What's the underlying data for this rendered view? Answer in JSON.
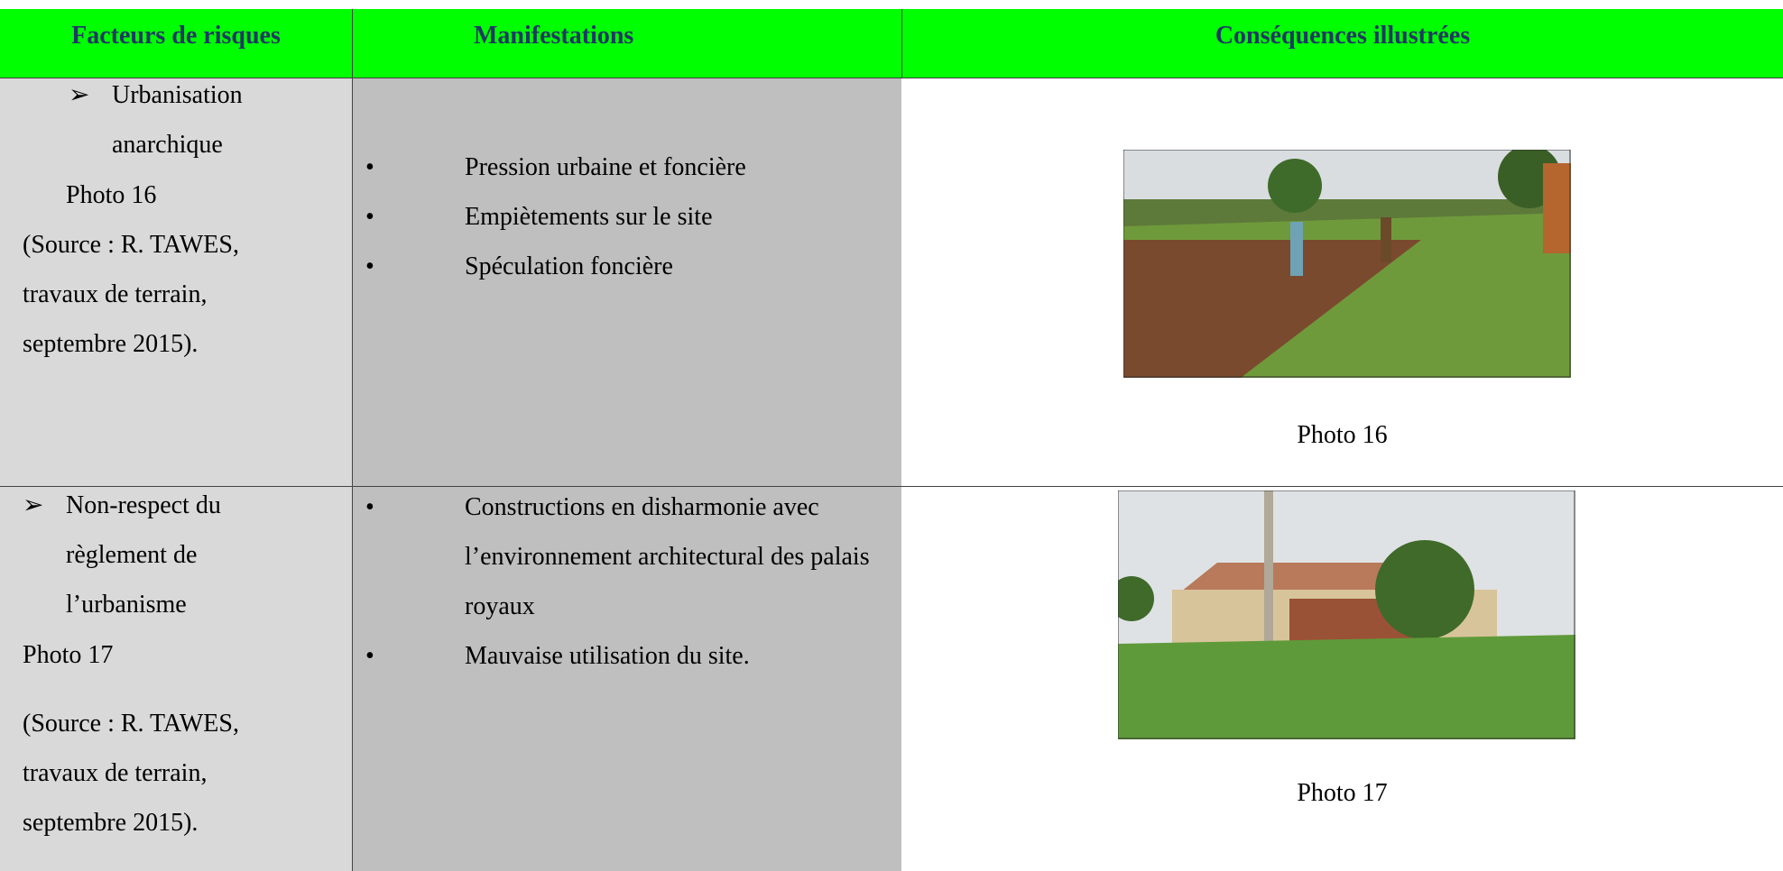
{
  "table": {
    "headers": [
      "Facteurs de risques",
      "Manifestations",
      "Conséquences illustrées"
    ],
    "rows": [
      {
        "factor": "Urbanisation anarchique",
        "photo_ref": "Photo 16",
        "source": [
          "(Source : R. TAWES,",
          "travaux de terrain,",
          "septembre 2015)."
        ],
        "manifestations": [
          "Pression urbaine et foncière",
          "Empiètements  sur le site",
          "Spéculation foncière"
        ],
        "caption": "Photo 16"
      },
      {
        "factor": "Non-respect du règlement de l’urbanisme",
        "photo_ref": "Photo 17",
        "source": [
          "(Source : R. TAWES,",
          "travaux de terrain,",
          "septembre 2015)."
        ],
        "manifestations": [
          "Constructions en disharmonie avec l’environnement architectural des palais royaux",
          "Mauvaise utilisation du site."
        ],
        "caption": "Photo 17"
      }
    ]
  }
}
